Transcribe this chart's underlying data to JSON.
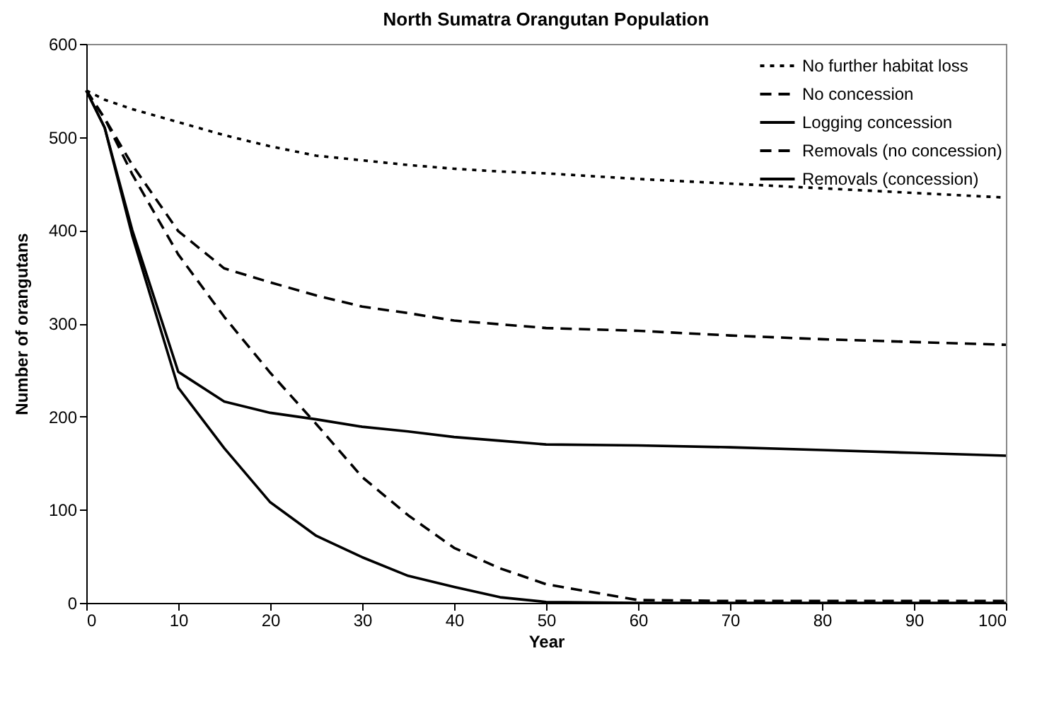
{
  "chart_data": {
    "type": "line",
    "title": "North Sumatra Orangutan Population",
    "xlabel": "Year",
    "ylabel": "Number of orangutans",
    "x": [
      0,
      2,
      5,
      10,
      15,
      20,
      25,
      30,
      35,
      40,
      45,
      50,
      60,
      70,
      80,
      90,
      100
    ],
    "series": [
      {
        "name": "No further habitat loss",
        "color": "#000000",
        "line_style": "dotted",
        "values": [
          550,
          540,
          530,
          516,
          502,
          490,
          480,
          475,
          470,
          466,
          463,
          461,
          455,
          450,
          445,
          440,
          435
        ]
      },
      {
        "name": "No concession",
        "color": "#000000",
        "line_style": "dashed",
        "values": [
          550,
          520,
          470,
          399,
          359,
          344,
          330,
          318,
          311,
          303,
          299,
          295,
          292,
          287,
          283,
          280,
          277
        ]
      },
      {
        "name": "Logging concession",
        "color": "#000000",
        "line_style": "solid",
        "values": [
          550,
          510,
          400,
          248,
          216,
          204,
          197,
          189,
          184,
          178,
          174,
          170,
          169,
          167,
          164,
          161,
          158
        ]
      },
      {
        "name": "Removals (no concession)",
        "color": "#000000",
        "line_style": "dashed",
        "values": [
          550,
          520,
          460,
          374,
          307,
          247,
          192,
          135,
          94,
          59,
          37,
          20,
          3,
          2,
          2,
          2,
          2
        ]
      },
      {
        "name": "Removals (concession)",
        "color": "#000000",
        "line_style": "solid",
        "values": [
          550,
          510,
          394,
          231,
          166,
          108,
          72,
          49,
          29,
          17,
          6,
          1,
          0,
          0,
          0,
          0,
          0
        ]
      }
    ],
    "xlim": [
      0,
      100
    ],
    "xticks": [
      0,
      10,
      20,
      30,
      40,
      50,
      60,
      70,
      80,
      90,
      100
    ],
    "ylim": [
      0,
      600
    ],
    "yticks": [
      0,
      100,
      200,
      300,
      400,
      500,
      600
    ],
    "legend": "top right",
    "grid": false,
    "marker": "none"
  }
}
